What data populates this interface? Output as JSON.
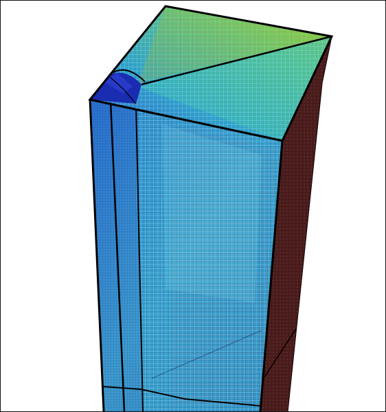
{
  "viewport": {
    "background": "#ffffff",
    "border_color": "#111111"
  },
  "model": {
    "face_colors": {
      "top_green": "#6fbf3a",
      "top_teal": "#2fb3a0",
      "top_blue": "#2f7fd0",
      "front_blue": "#2a6fd6",
      "front_light": "#3aa0cf",
      "right_side": "#4a1a1a",
      "corner_dark_blue": "#1a2db0",
      "edge_black": "#000000",
      "grid_cyan": "#7fe0ff",
      "grid_red": "#c86060"
    }
  }
}
